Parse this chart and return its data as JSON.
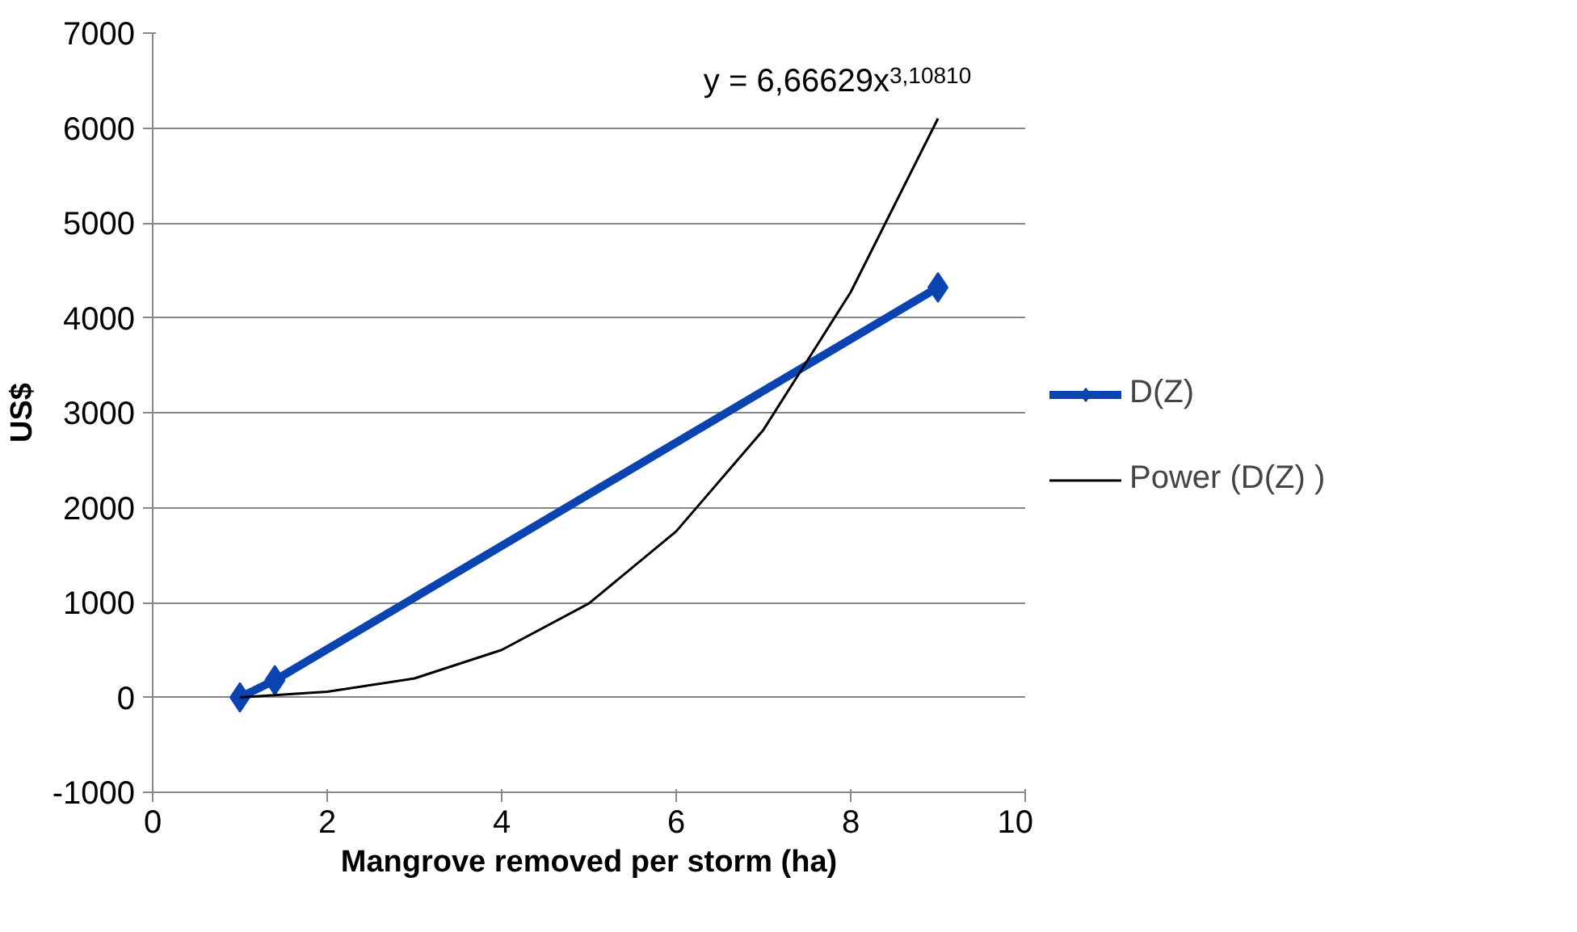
{
  "chart_data": {
    "type": "line",
    "xlabel": "Mangrove removed per storm (ha)",
    "ylabel": "US$",
    "xlim": [
      0,
      10
    ],
    "xticks": [
      0,
      2,
      4,
      6,
      8,
      10
    ],
    "ylim": [
      -1000,
      7000
    ],
    "yticks": [
      -1000,
      0,
      1000,
      2000,
      3000,
      4000,
      5000,
      6000,
      7000
    ],
    "grid": "y",
    "legend": "right",
    "marker": "diamond",
    "line_style": "solid",
    "series": [
      {
        "name": "D(Z)",
        "color": "#0a44b0",
        "x": [
          1,
          1.4,
          9
        ],
        "values": [
          0,
          180,
          4320
        ]
      },
      {
        "name": "Power (D(Z) )",
        "color": "#000000",
        "type": "line",
        "marker": "none",
        "x": [
          1,
          2,
          3,
          4,
          5,
          6,
          7,
          8,
          9
        ],
        "values": [
          0,
          60,
          200,
          500,
          990,
          1750,
          2820,
          4270,
          6100
        ]
      }
    ],
    "annotations": [
      {
        "text": "y = 6,66629x$^{3,10810}$",
        "x": 9,
        "y": 6100
      }
    ]
  }
}
